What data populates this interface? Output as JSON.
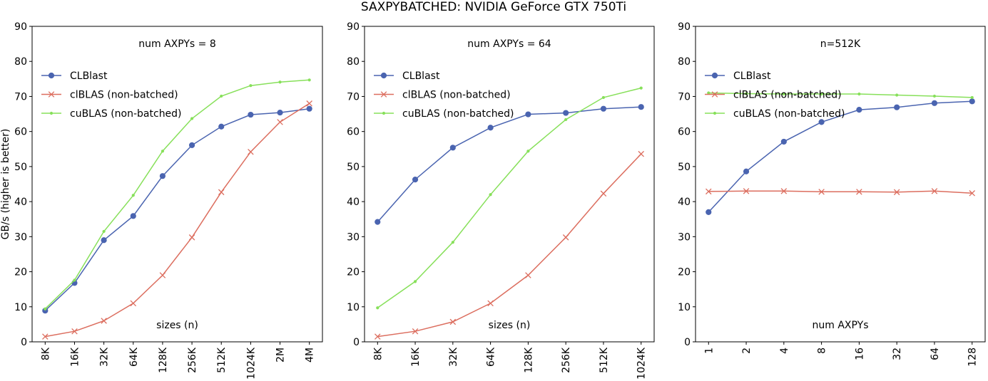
{
  "figure_title": "SAXPYBATCHED: NVIDIA GeForce GTX 750Ti",
  "series_colors": {
    "CLBlast": "#4a64b0",
    "clBLAS (non-batched)": "#dc6e5f",
    "cuBLAS (non-batched)": "#87e05a"
  },
  "chart_data": [
    {
      "type": "line",
      "annotation": "num AXPYs = 8",
      "xlabel": "sizes (n)",
      "ylabel": "GB/s (higher is better)",
      "ylim": [
        0,
        90
      ],
      "yticks": [
        0,
        10,
        20,
        30,
        40,
        50,
        60,
        70,
        80,
        90
      ],
      "categories": [
        "8K",
        "16K",
        "32K",
        "64K",
        "128K",
        "256K",
        "512K",
        "1024K",
        "2M",
        "4M"
      ],
      "legend": "top-left",
      "grid": false,
      "series": [
        {
          "name": "CLBlast",
          "marker": "dot",
          "values": [
            8.9,
            16.8,
            29.0,
            35.9,
            47.3,
            56.1,
            61.4,
            64.8,
            65.4,
            66.5
          ]
        },
        {
          "name": "clBLAS (non-batched)",
          "marker": "x",
          "values": [
            1.5,
            3.0,
            6.0,
            11.0,
            19.0,
            29.8,
            42.7,
            54.2,
            62.7,
            68.0
          ]
        },
        {
          "name": "cuBLAS (non-batched)",
          "marker": "small",
          "values": [
            9.4,
            17.6,
            31.5,
            41.8,
            54.4,
            63.7,
            70.1,
            73.1,
            74.1,
            74.7
          ]
        }
      ]
    },
    {
      "type": "line",
      "annotation": "num AXPYs = 64",
      "xlabel": "sizes (n)",
      "ylabel": "",
      "ylim": [
        0,
        90
      ],
      "yticks": [
        0,
        10,
        20,
        30,
        40,
        50,
        60,
        70,
        80,
        90
      ],
      "categories": [
        "8K",
        "16K",
        "32K",
        "64K",
        "128K",
        "256K",
        "512K",
        "1024K"
      ],
      "legend": "top-left",
      "grid": false,
      "series": [
        {
          "name": "CLBlast",
          "marker": "dot",
          "values": [
            34.2,
            46.3,
            55.4,
            61.1,
            64.9,
            65.3,
            66.5,
            67.0
          ]
        },
        {
          "name": "clBLAS (non-batched)",
          "marker": "x",
          "values": [
            1.5,
            3.0,
            5.7,
            11.0,
            19.0,
            29.8,
            42.3,
            53.6
          ]
        },
        {
          "name": "cuBLAS (non-batched)",
          "marker": "small",
          "values": [
            9.7,
            17.2,
            28.4,
            42.0,
            54.4,
            63.4,
            69.7,
            72.4
          ]
        }
      ]
    },
    {
      "type": "line",
      "annotation": "n=512K",
      "xlabel": "num AXPYs",
      "ylabel": "",
      "ylim": [
        0,
        90
      ],
      "yticks": [
        0,
        10,
        20,
        30,
        40,
        50,
        60,
        70,
        80,
        90
      ],
      "categories": [
        "1",
        "2",
        "4",
        "8",
        "16",
        "32",
        "64",
        "128"
      ],
      "legend": "top-left",
      "grid": false,
      "series": [
        {
          "name": "CLBlast",
          "marker": "dot",
          "values": [
            37.0,
            48.6,
            57.1,
            62.7,
            66.2,
            66.9,
            68.1,
            68.6
          ]
        },
        {
          "name": "clBLAS (non-batched)",
          "marker": "x",
          "values": [
            42.9,
            43.0,
            43.0,
            42.8,
            42.8,
            42.7,
            43.0,
            42.4
          ]
        },
        {
          "name": "cuBLAS (non-batched)",
          "marker": "small",
          "values": [
            71.0,
            70.8,
            70.7,
            70.7,
            70.7,
            70.4,
            70.1,
            69.7
          ]
        }
      ]
    }
  ]
}
